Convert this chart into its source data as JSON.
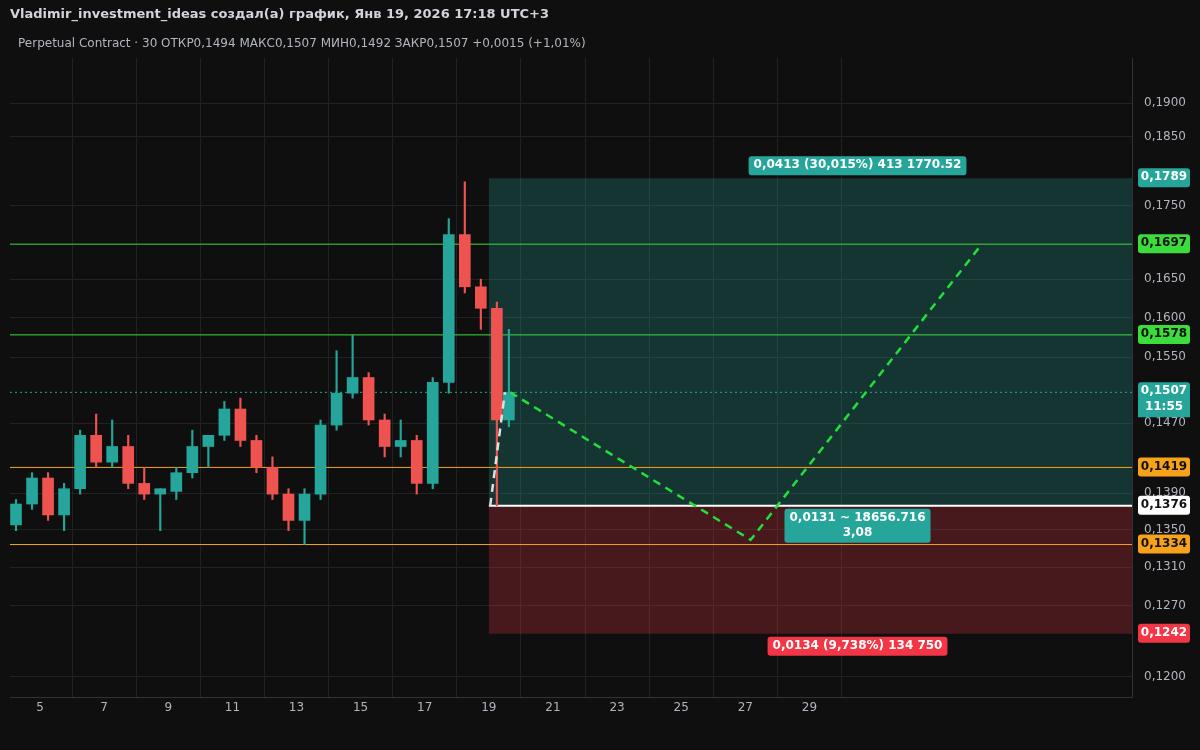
{
  "chart_data": {
    "type": "candlestick",
    "title": "Vladimir_investment_ideas создал(а) график, Янв 19, 2026 17:18 UTC+3",
    "subtitle": "Perpetual Contract · 30 ОТКР0,1494 МАКС0,1507 МИН0,1492 ЗАКР0,1507 +0,0015 (+1,01%)",
    "x": [
      "2026-01-04T06:00",
      "2026-01-04T18:00",
      "2026-01-05T06:00",
      "2026-01-05T18:00",
      "2026-01-06T06:00",
      "2026-01-06T18:00",
      "2026-01-07T06:00",
      "2026-01-07T18:00",
      "2026-01-08T06:00",
      "2026-01-08T18:00",
      "2026-01-09T06:00",
      "2026-01-09T18:00",
      "2026-01-10T06:00",
      "2026-01-10T18:00",
      "2026-01-11T06:00",
      "2026-01-11T18:00",
      "2026-01-12T06:00",
      "2026-01-12T18:00",
      "2026-01-13T06:00",
      "2026-01-13T18:00",
      "2026-01-14T06:00",
      "2026-01-14T18:00",
      "2026-01-15T06:00",
      "2026-01-15T18:00",
      "2026-01-16T06:00",
      "2026-01-16T18:00",
      "2026-01-17T06:00",
      "2026-01-17T18:00",
      "2026-01-18T06:00",
      "2026-01-18T18:00",
      "2026-01-19T06:00",
      "2026-01-19T15:00"
    ],
    "ohlc": [
      [
        0.1355,
        0.1383,
        0.1349,
        0.1378
      ],
      [
        0.1378,
        0.1413,
        0.1372,
        0.1407
      ],
      [
        0.1407,
        0.1413,
        0.136,
        0.1366
      ],
      [
        0.1366,
        0.1401,
        0.1349,
        0.1395
      ],
      [
        0.1395,
        0.1462,
        0.1389,
        0.1456
      ],
      [
        0.1456,
        0.1481,
        0.1419,
        0.1425
      ],
      [
        0.1425,
        0.1474,
        0.1419,
        0.1443
      ],
      [
        0.1443,
        0.1456,
        0.1395,
        0.1401
      ],
      [
        0.1401,
        0.1419,
        0.1383,
        0.1389
      ],
      [
        0.1389,
        0.1395,
        0.1349,
        0.1395
      ],
      [
        0.1392,
        0.1419,
        0.1383,
        0.1413
      ],
      [
        0.1413,
        0.1462,
        0.1407,
        0.1443
      ],
      [
        0.1443,
        0.1456,
        0.1419,
        0.1456
      ],
      [
        0.1456,
        0.1496,
        0.145,
        0.1487
      ],
      [
        0.1487,
        0.15,
        0.1443,
        0.145
      ],
      [
        0.145,
        0.1456,
        0.1413,
        0.1419
      ],
      [
        0.1419,
        0.1431,
        0.1383,
        0.1389
      ],
      [
        0.1389,
        0.1395,
        0.1349,
        0.136
      ],
      [
        0.136,
        0.1395,
        0.1334,
        0.1389
      ],
      [
        0.1389,
        0.1474,
        0.1383,
        0.1468
      ],
      [
        0.1468,
        0.1558,
        0.1462,
        0.1506
      ],
      [
        0.1506,
        0.1578,
        0.15,
        0.1525
      ],
      [
        0.1525,
        0.1531,
        0.1468,
        0.1474
      ],
      [
        0.1474,
        0.1481,
        0.1431,
        0.1443
      ],
      [
        0.1443,
        0.1474,
        0.1431,
        0.145
      ],
      [
        0.145,
        0.1456,
        0.1389,
        0.1401
      ],
      [
        0.1401,
        0.1525,
        0.1395,
        0.1519
      ],
      [
        0.1519,
        0.1732,
        0.1506,
        0.171
      ],
      [
        0.171,
        0.1784,
        0.1632,
        0.164
      ],
      [
        0.164,
        0.165,
        0.1585,
        0.1612
      ],
      [
        0.1612,
        0.162,
        0.1376,
        0.1474
      ],
      [
        0.1474,
        0.1585,
        0.1466,
        0.1507
      ]
    ],
    "colors": [
      "#26a69a",
      "#26a69a",
      "#ef5350",
      "#26a69a",
      "#26a69a",
      "#ef5350",
      "#26a69a",
      "#ef5350",
      "#ef5350",
      "#26a69a",
      "#26a69a",
      "#26a69a",
      "#26a69a",
      "#26a69a",
      "#ef5350",
      "#ef5350",
      "#ef5350",
      "#ef5350",
      "#26a69a",
      "#26a69a",
      "#26a69a",
      "#26a69a",
      "#ef5350",
      "#ef5350",
      "#26a69a",
      "#ef5350",
      "#26a69a",
      "#26a69a",
      "#ef5350",
      "#ef5350",
      "#ef5350",
      "#26a69a"
    ],
    "series": [
      {
        "type": "line",
        "color": "#22e03a",
        "line_style": "dashed",
        "x": [
          "2026-01-19T16:00",
          "2026-01-27T04:00",
          "2026-02-03T09:00"
        ],
        "values": [
          0.1507,
          0.1339,
          0.1697
        ]
      },
      {
        "type": "line",
        "color": "#e0e0e0",
        "line_style": "dashed",
        "x": [
          "2026-01-19T01:00",
          "2026-01-19T12:00"
        ],
        "values": [
          0.1376,
          0.1507
        ]
      }
    ],
    "ref_lines": [
      {
        "axis": "y",
        "value": 0.1697,
        "label": "0,1697",
        "color": "#3ddc3d"
      },
      {
        "axis": "y",
        "value": 0.1578,
        "label": "0,1578",
        "color": "#3ddc3d"
      },
      {
        "axis": "y",
        "value": 0.1507,
        "label": "0,1507",
        "color": "#26a69a",
        "line_style": "dotted"
      },
      {
        "axis": "y",
        "value": 0.1419,
        "label": "0,1419",
        "color": "#f7a21b"
      },
      {
        "axis": "y",
        "value": 0.1376,
        "label": "0,1376",
        "color": "#ffffff"
      },
      {
        "axis": "y",
        "value": 0.1334,
        "label": "0,1334",
        "color": "#f7a21b"
      }
    ],
    "bands": [
      {
        "axis": "y",
        "from": 0.1376,
        "to": 0.1789,
        "label": "0,1789",
        "color": "#26a69a"
      },
      {
        "axis": "y",
        "from": 0.1242,
        "to": 0.1376,
        "label": "0,1242",
        "color": "#f23645"
      }
    ],
    "annotations": [
      {
        "text": "0,0413 (30,015%) 413 1770.52",
        "x": "2026-01-30T12:00",
        "y": 0.1789
      },
      {
        "text": "0,0131 ~ 18656.716\n3,08",
        "x": "2026-01-30T12:00",
        "y": 0.1376
      },
      {
        "text": "0,0134 (9,738%) 134 750",
        "x": "2026-01-30T12:00",
        "y": 0.1242
      },
      "11:55"
    ],
    "xlim": [
      "2026-01-04T01:30",
      "2026-02-08T01:30"
    ],
    "xticks": [
      {
        "value": "2026-01-05",
        "label": "5"
      },
      {
        "value": "2026-01-07",
        "label": "7"
      },
      {
        "value": "2026-01-09",
        "label": "9"
      },
      {
        "value": "2026-01-11",
        "label": "11"
      },
      {
        "value": "2026-01-13",
        "label": "13"
      },
      {
        "value": "2026-01-15",
        "label": "15"
      },
      {
        "value": "2026-01-17",
        "label": "17"
      },
      {
        "value": "2026-01-19",
        "label": "19"
      },
      {
        "value": "2026-01-21",
        "label": "21"
      },
      {
        "value": "2026-01-23",
        "label": "23"
      },
      {
        "value": "2026-01-25",
        "label": "25"
      },
      {
        "value": "2026-01-27",
        "label": "27"
      },
      {
        "value": "2026-01-29",
        "label": "29"
      }
    ],
    "ylim": [
      0.118,
      0.197
    ],
    "yticks": [
      {
        "value": 0.19,
        "label": "0,1900"
      },
      {
        "value": 0.185,
        "label": "0,1850"
      },
      {
        "value": 0.175,
        "label": "0,1750"
      },
      {
        "value": 0.165,
        "label": "0,1650"
      },
      {
        "value": 0.16,
        "label": "0,1600"
      },
      {
        "value": 0.155,
        "label": "0,1550"
      },
      {
        "value": 0.147,
        "label": "0,1470"
      },
      {
        "value": 0.139,
        "label": "0,1390"
      },
      {
        "value": 0.135,
        "label": "0,1350"
      },
      {
        "value": 0.131,
        "label": "0,1310"
      },
      {
        "value": 0.127,
        "label": "0,1270"
      },
      {
        "value": 0.12,
        "label": "0,1200"
      }
    ],
    "log": "y",
    "grid": true,
    "legend": false
  }
}
